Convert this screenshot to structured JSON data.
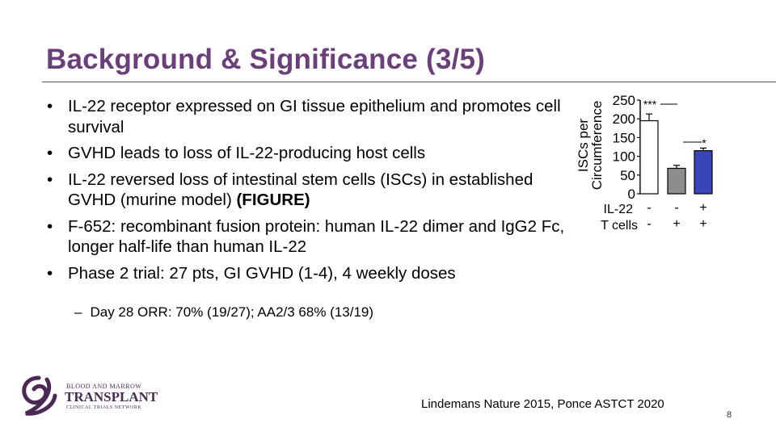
{
  "slide": {
    "title": "Background & Significance (3/5)",
    "bullets": [
      {
        "text": "IL-22 receptor expressed on GI tissue epithelium and promotes cell survival"
      },
      {
        "text": "GVHD leads to loss of IL-22-producing host cells"
      },
      {
        "text": "IL-22 reversed loss of intestinal stem cells (ISCs) in established GVHD (murine model) ",
        "bold": "(FIGURE)"
      },
      {
        "text": "F-652: recombinant fusion protein: human IL-22 dimer and IgG2 Fc, longer half-life than human IL-22"
      },
      {
        "text": "Phase 2 trial: 27 pts, GI GVHD (1-4), 4 weekly doses"
      }
    ],
    "sub_bullet": {
      "dash": "–",
      "text": "Day 28 ORR: 70% (19/27); AA2/3 68% (13/19)"
    },
    "citation": "Lindemans Nature 2015, Ponce ASTCT 2020",
    "page_number": "8"
  },
  "logo": {
    "line1": "BLOOD AND MARROW",
    "line2": "TRANSPLANT",
    "line3": "CLINICAL TRIALS NETWORK",
    "color": "#4a2a55"
  },
  "chart_data": {
    "type": "bar",
    "ylabel_line1": "ISCs per",
    "ylabel_line2": "Circumference",
    "ylim": [
      0,
      250
    ],
    "yticks": [
      "0",
      "50",
      "100",
      "150",
      "200",
      "250"
    ],
    "row_labels": [
      "IL-22",
      "T cells"
    ],
    "groups": [
      {
        "il22": "-",
        "tcells": "-",
        "value": 195,
        "error": 18,
        "fill": "#ffffff"
      },
      {
        "il22": "-",
        "tcells": "+",
        "value": 68,
        "error": 8,
        "fill": "#8c8c8c"
      },
      {
        "il22": "+",
        "tcells": "+",
        "value": 115,
        "error": 7,
        "fill": "#3a46b8"
      }
    ],
    "annotations": [
      {
        "text": "***",
        "between": [
          0,
          1
        ]
      },
      {
        "text": "*",
        "between": [
          1,
          2
        ]
      }
    ]
  }
}
